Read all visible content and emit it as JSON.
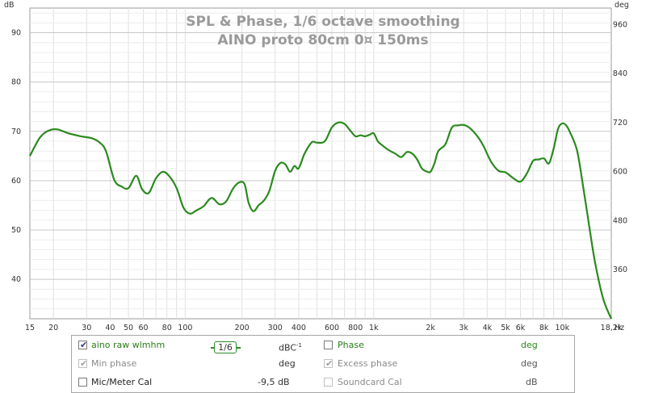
{
  "chart_data": {
    "type": "line",
    "title": "SPL & Phase, 1/6 octave smoothing",
    "subtitle": "AINO proto 80cm 0¤ 150ms",
    "y_unit_left": "dB",
    "y_unit_right": "deg",
    "x_unit": "Hz",
    "xscale": "log",
    "xlim": [
      15,
      18200
    ],
    "ylim": [
      32,
      95
    ],
    "y_right_lim": [
      240,
      1000
    ],
    "grid": true,
    "x_ticks": [
      {
        "v": 15,
        "label": "15"
      },
      {
        "v": 20,
        "label": "20"
      },
      {
        "v": 30,
        "label": "30"
      },
      {
        "v": 40,
        "label": "40"
      },
      {
        "v": 50,
        "label": "50"
      },
      {
        "v": 60,
        "label": "60"
      },
      {
        "v": 80,
        "label": "80"
      },
      {
        "v": 100,
        "label": "100"
      },
      {
        "v": 200,
        "label": "200"
      },
      {
        "v": 300,
        "label": "300"
      },
      {
        "v": 400,
        "label": "400"
      },
      {
        "v": 600,
        "label": "600"
      },
      {
        "v": 800,
        "label": "800"
      },
      {
        "v": 1000,
        "label": "1k"
      },
      {
        "v": 2000,
        "label": "2k"
      },
      {
        "v": 3000,
        "label": "3k"
      },
      {
        "v": 4000,
        "label": "4k"
      },
      {
        "v": 5000,
        "label": "5k"
      },
      {
        "v": 6000,
        "label": "6k"
      },
      {
        "v": 8000,
        "label": "8k"
      },
      {
        "v": 10000,
        "label": "10k"
      },
      {
        "v": 18200,
        "label": "18,2k"
      }
    ],
    "y_ticks_left": [
      40,
      50,
      60,
      70,
      80,
      90
    ],
    "y_ticks_right": [
      360,
      480,
      600,
      720,
      840,
      960
    ],
    "series": [
      {
        "name": "aino raw wlmhm",
        "color": "#2a8a1e",
        "x": [
          15,
          17,
          19,
          21,
          24,
          28,
          32,
          35,
          38,
          42,
          46,
          50,
          55,
          59,
          64,
          70,
          76,
          82,
          90,
          98,
          106,
          115,
          125,
          138,
          152,
          165,
          180,
          195,
          207,
          217,
          230,
          245,
          262,
          280,
          300,
          320,
          340,
          360,
          380,
          400,
          430,
          470,
          500,
          550,
          600,
          650,
          700,
          750,
          800,
          850,
          900,
          950,
          1000,
          1050,
          1100,
          1200,
          1300,
          1400,
          1500,
          1600,
          1700,
          1800,
          1900,
          2000,
          2100,
          2200,
          2400,
          2600,
          2800,
          3000,
          3200,
          3500,
          3800,
          4200,
          4600,
          5000,
          5500,
          6000,
          6500,
          7000,
          7500,
          8000,
          8500,
          9000,
          9500,
          10000,
          10500,
          11000,
          12000,
          13000,
          14000,
          15000,
          16500,
          18200
        ],
        "y": [
          65,
          68.8,
          70.2,
          70.4,
          69.6,
          69,
          68.6,
          67.8,
          66,
          60.2,
          58.8,
          58.5,
          61,
          58.3,
          57.5,
          60.5,
          61.8,
          61,
          58.5,
          54.5,
          53.3,
          54,
          54.8,
          56.5,
          55.2,
          55.8,
          58.5,
          59.7,
          59.2,
          55.5,
          53.8,
          55,
          56,
          58,
          62,
          63.6,
          63.3,
          61.8,
          63,
          62.5,
          65.5,
          67.8,
          67.7,
          68,
          70.8,
          71.8,
          71.5,
          70.2,
          69,
          69.2,
          69,
          69.3,
          69.6,
          68,
          67.3,
          66.2,
          65.5,
          64.8,
          65.8,
          65.5,
          64.3,
          62.5,
          61.9,
          61.8,
          63.5,
          66,
          67.4,
          70.8,
          71.2,
          71.3,
          70.8,
          69.3,
          67.2,
          63.8,
          62,
          61.7,
          60.5,
          59.8,
          61.5,
          64,
          64.3,
          64.5,
          63.5,
          66.5,
          70.5,
          71.6,
          71.2,
          69.8,
          66,
          58,
          50,
          43,
          36,
          31.5
        ]
      }
    ]
  },
  "legend": {
    "rows": [
      {
        "left_checked": true,
        "left_enabled": true,
        "left_label": "aino raw wlmhm",
        "left_label_color": "#2a7a1a",
        "smoothing": "1/6",
        "left_unit": "dBC",
        "left_unit_sup": "-1",
        "right_checked": false,
        "right_enabled": true,
        "right_label": "Phase",
        "right_label_color": "#2a7a1a",
        "right_unit": "deg",
        "right_unit_color": "#2a8a1a"
      },
      {
        "left_checked": true,
        "left_enabled": false,
        "left_label": "Min phase",
        "left_label_color": "#8a8a8a",
        "left_unit": "deg",
        "right_checked": true,
        "right_enabled": false,
        "right_label": "Excess phase",
        "right_label_color": "#8a8a8a",
        "right_unit": "deg",
        "right_unit_color": "#555555"
      },
      {
        "left_checked": false,
        "left_enabled": true,
        "left_label": "Mic/Meter Cal",
        "left_label_color": "#222222",
        "left_unit": "-9,5 dB",
        "right_checked": false,
        "right_enabled": false,
        "right_label": "Soundcard Cal",
        "right_label_color": "#8a8a8a",
        "right_unit": "dB",
        "right_unit_color": "#555555"
      }
    ]
  }
}
